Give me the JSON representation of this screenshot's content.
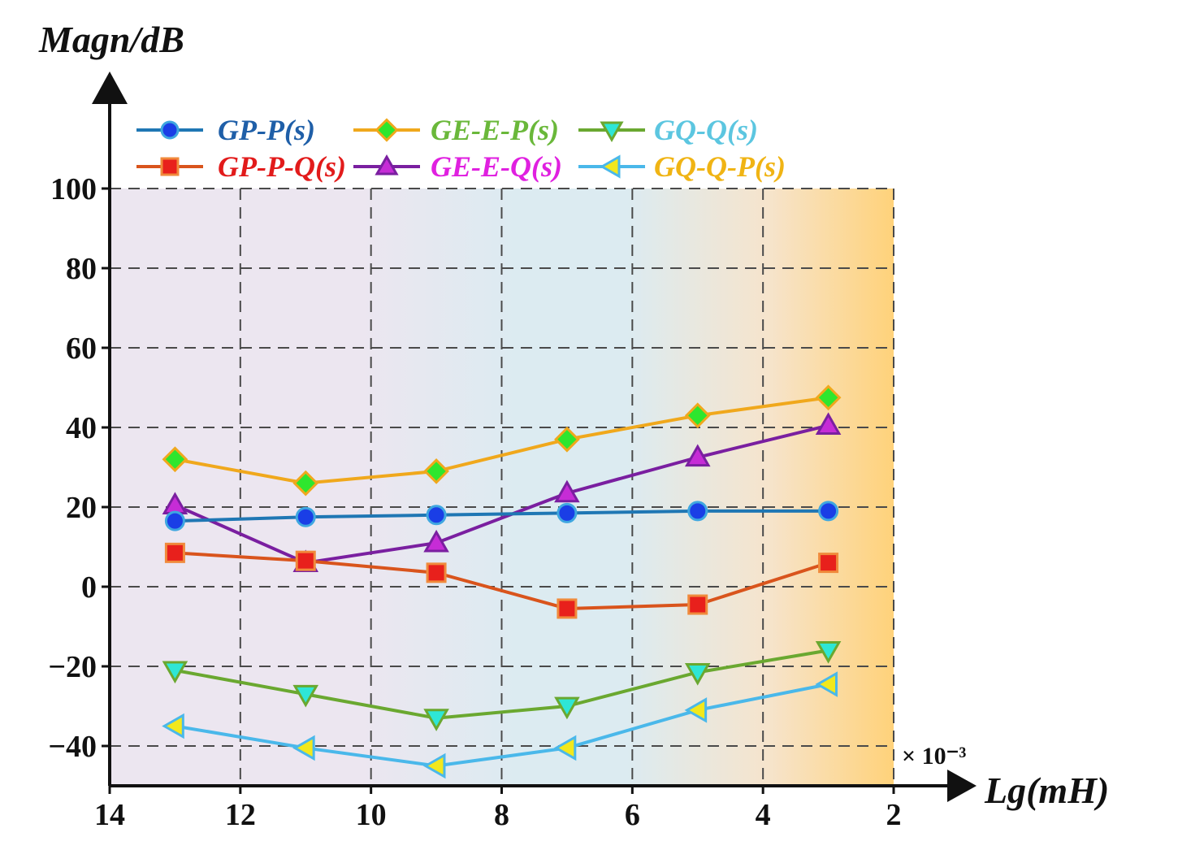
{
  "chart_data": {
    "type": "line",
    "xlabel": "Lg(mH)",
    "ylabel": "Magn/dB",
    "x_multiplier": "× 10⁻³",
    "xlim": [
      14,
      2
    ],
    "ylim": [
      -50,
      100
    ],
    "x_ticks": [
      "14",
      "12",
      "10",
      "8",
      "6",
      "4",
      "2"
    ],
    "y_ticks": [
      "100",
      "80",
      "60",
      "40",
      "20",
      "0",
      "−20",
      "−40"
    ],
    "grid": true,
    "legend_position": "top-left",
    "x": [
      13,
      11,
      9,
      7,
      5,
      3
    ],
    "series": [
      {
        "name": "GP-P(s)",
        "values": [
          16.5,
          17.5,
          18,
          18.5,
          19,
          19
        ],
        "line_color": "#1f77b4",
        "marker": "circle",
        "marker_color": "#1a3ee6",
        "marker_edge": "#3fa7e0",
        "label_color": "#1f5fa8"
      },
      {
        "name": "GP-P-Q(s)",
        "values": [
          8.5,
          6.5,
          3.5,
          -5.5,
          -4.5,
          6
        ],
        "line_color": "#d9541c",
        "marker": "square",
        "marker_color": "#e8201c",
        "marker_edge": "#f08a3c",
        "label_color": "#e21b1b"
      },
      {
        "name": "GE-E-P(s)",
        "values": [
          32,
          26,
          29,
          37,
          43,
          47.5
        ],
        "line_color": "#f0a81c",
        "marker": "diamond",
        "marker_color": "#2ee62e",
        "marker_edge": "#f0a81c",
        "label_color": "#6ab83a"
      },
      {
        "name": "GE-E-Q(s)",
        "values": [
          20.5,
          6,
          11,
          23.5,
          32.5,
          40.5
        ],
        "line_color": "#7a1fa0",
        "marker": "triangle-up",
        "marker_color": "#c62cd6",
        "marker_edge": "#7a1fa0",
        "label_color": "#e020e0"
      },
      {
        "name": "GQ-Q(s)",
        "values": [
          -21,
          -27,
          -33,
          -30,
          -21.5,
          -16
        ],
        "line_color": "#6aa830",
        "marker": "triangle-down",
        "marker_color": "#2ee6d6",
        "marker_edge": "#6aa830",
        "label_color": "#5cc6e0"
      },
      {
        "name": "GQ-Q-P(s)",
        "values": [
          -35,
          -40.5,
          -45,
          -40.5,
          -31,
          -24.5
        ],
        "line_color": "#4ab8ea",
        "marker": "triangle-left",
        "marker_color": "#f2e81c",
        "marker_edge": "#4ab8ea",
        "label_color": "#f0b414"
      }
    ],
    "colors": {
      "background_left": "#ece6f0",
      "background_mid": "#dcebf1",
      "background_right": "#ffd27a"
    }
  }
}
